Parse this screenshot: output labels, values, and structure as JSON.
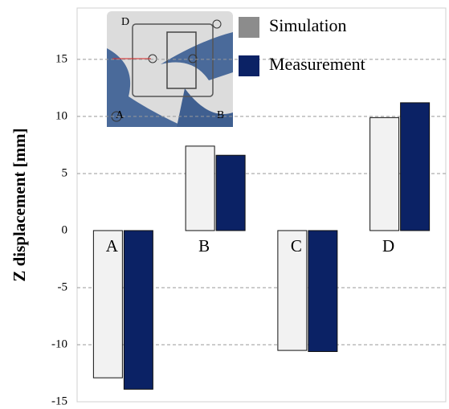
{
  "chart_data": {
    "type": "bar",
    "y_label": "Z displacement [mm]",
    "categories": [
      "A",
      "B",
      "C",
      "D"
    ],
    "series": [
      {
        "name": "Simulation",
        "color": "#f2f2f2",
        "legend_color": "#8c8c8c",
        "values": [
          -12.9,
          7.4,
          -10.5,
          9.9
        ]
      },
      {
        "name": "Measurement",
        "color": "#0b2265",
        "legend_color": "#0b2265",
        "values": [
          -13.9,
          6.6,
          -10.6,
          11.2
        ]
      }
    ],
    "ylim": [
      -15,
      19.5
    ],
    "yticks": [
      -15,
      -10,
      -5,
      0,
      5,
      10,
      15
    ],
    "grid": true,
    "legend": "upper right"
  },
  "inset_labels": [
    "D",
    "A",
    "B"
  ]
}
